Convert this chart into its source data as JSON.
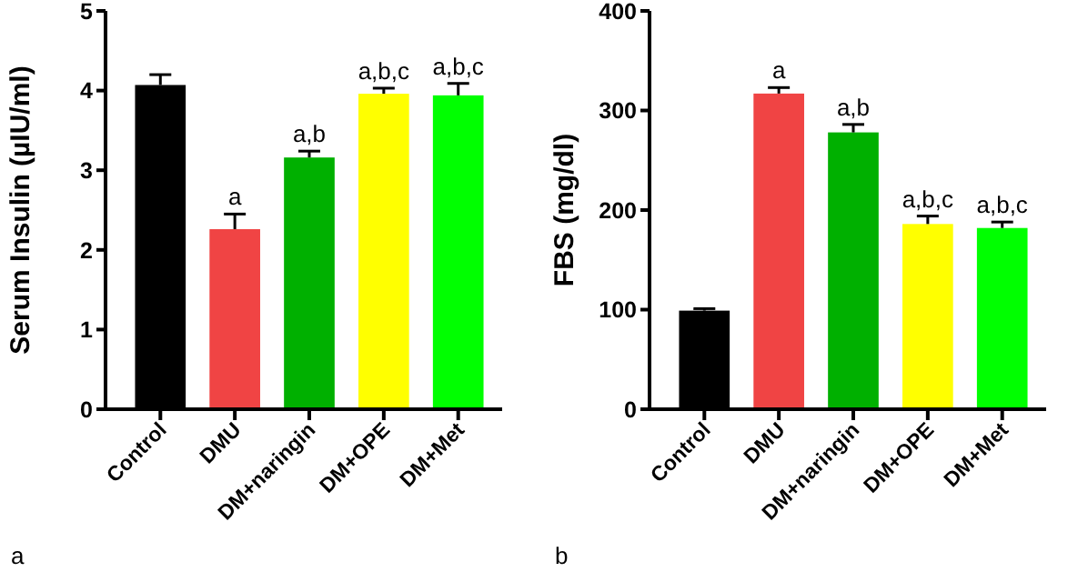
{
  "chart_data": [
    {
      "type": "bar",
      "ylabel": "Serum Insulin (µIU/ml)",
      "categories": [
        "Control",
        "DMU",
        "DM+naringin",
        "DM+OPE",
        "DM+Met"
      ],
      "values": [
        4.07,
        2.26,
        3.16,
        3.96,
        3.94
      ],
      "colors": [
        "#000000",
        "#f04444",
        "#00b000",
        "#ffff00",
        "#00ff00"
      ],
      "errors": [
        [
          4.07,
          4.2
        ],
        [
          2.26,
          2.45
        ],
        [
          3.16,
          3.24
        ],
        [
          3.96,
          4.03
        ],
        [
          3.94,
          4.09
        ]
      ],
      "ylim": [
        0,
        5
      ],
      "yticks": [
        0,
        1,
        2,
        3,
        4,
        5
      ],
      "grid": false,
      "annotations": [
        {
          "text": "a",
          "x": "DMU",
          "y": 2.45
        },
        {
          "text": "a,b",
          "x": "DM+naringin",
          "y": 3.24
        },
        {
          "text": "a,b,c",
          "x": "DM+OPE",
          "y": 4.03
        },
        {
          "text": "a,b,c",
          "x": "DM+Met",
          "y": 4.09
        },
        "a"
      ]
    },
    {
      "type": "bar",
      "ylabel": "FBS (mg/dl)",
      "categories": [
        "Control",
        "DMU",
        "DM+naringin",
        "DM+OPE",
        "DM+Met"
      ],
      "values": [
        99,
        317,
        278,
        186,
        182
      ],
      "colors": [
        "#000000",
        "#f04444",
        "#00b000",
        "#ffff00",
        "#00ff00"
      ],
      "errors": [
        [
          99,
          101
        ],
        [
          317,
          323
        ],
        [
          278,
          286
        ],
        [
          186,
          194
        ],
        [
          182,
          188
        ]
      ],
      "ylim": [
        0,
        400
      ],
      "yticks": [
        0,
        100,
        200,
        300,
        400
      ],
      "grid": false,
      "annotations": [
        {
          "text": "a",
          "x": "DMU",
          "y": 323
        },
        {
          "text": "a,b",
          "x": "DM+naringin",
          "y": 286
        },
        {
          "text": "a,b,c",
          "x": "DM+OPE",
          "y": 194
        },
        {
          "text": "a,b,c",
          "x": "DM+Met",
          "y": 188
        },
        "b"
      ]
    }
  ]
}
